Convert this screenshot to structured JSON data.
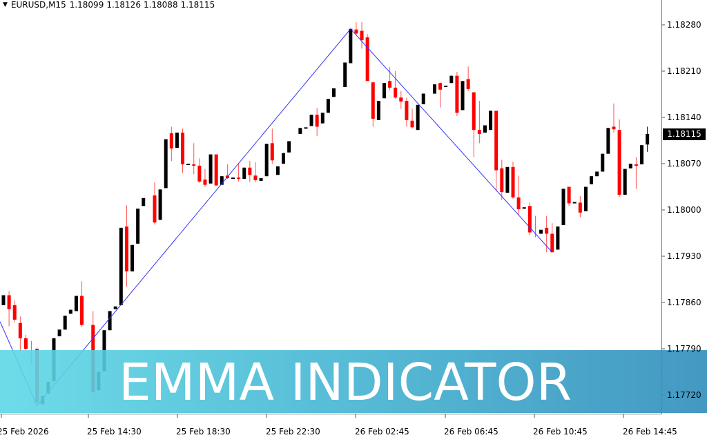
{
  "header": {
    "symbol": "EURUSD,M15",
    "open": "1.18099",
    "high": "1.18126",
    "low": "1.18088",
    "close": "1.18115"
  },
  "price_axis": [
    "1.18280",
    "1.18210",
    "1.18140",
    "1.18070",
    "1.18000",
    "1.17930",
    "1.17860",
    "1.17790",
    "1.17720"
  ],
  "current_price": "1.18115",
  "time_axis": [
    "25 Feb 2026",
    "25 Feb 14:30",
    "25 Feb 18:30",
    "25 Feb 22:30",
    "26 Feb 02:45",
    "26 Feb 06:45",
    "26 Feb 10:45",
    "26 Feb 14:45"
  ],
  "banner": {
    "title": "EMMA INDICATOR"
  },
  "colors": {
    "bull": "#000000",
    "bear": "#ff0000",
    "signal": "#00ee00",
    "zigzag": "#3333ff",
    "banner_left": "#5ed8e6",
    "banner_right": "#2f8dbb"
  },
  "chart_data": {
    "type": "candlestick",
    "symbol": "EURUSD",
    "timeframe": "M15",
    "ylim": [
      1.1768,
      1.1832
    ],
    "candles_ohlc": [
      [
        1.17856,
        1.17871,
        1.17856,
        1.17871
      ],
      [
        1.17871,
        1.17877,
        1.17824,
        1.1785
      ],
      [
        1.17856,
        1.17863,
        1.1783,
        1.17834
      ],
      [
        1.17829,
        1.17839,
        1.17785,
        1.17806
      ],
      [
        1.17806,
        1.17811,
        1.17788,
        1.1779
      ],
      [
        1.17788,
        1.17802,
        1.17767,
        1.17802
      ],
      [
        1.1779,
        1.17792,
        1.17704,
        1.17709
      ],
      [
        1.17706,
        1.17719,
        1.17706,
        1.17719
      ],
      [
        1.17722,
        1.1774,
        1.17722,
        1.1774
      ],
      [
        1.17741,
        1.17806,
        1.17741,
        1.17806
      ],
      [
        1.17809,
        1.17819,
        1.17809,
        1.17819
      ],
      [
        1.17819,
        1.1784,
        1.17819,
        1.1784
      ],
      [
        1.17843,
        1.17849,
        1.17843,
        1.17849
      ],
      [
        1.17847,
        1.1787,
        1.17847,
        1.1787
      ],
      [
        1.1787,
        1.17892,
        1.17823,
        1.17826
      ],
      null,
      [
        1.17826,
        1.17847,
        1.17722,
        1.17725
      ],
      [
        1.17727,
        1.17755,
        1.17727,
        1.17755
      ],
      [
        1.17756,
        1.17818,
        1.17756,
        1.17818
      ],
      [
        1.17818,
        1.17847,
        1.17818,
        1.17847
      ],
      [
        1.1785,
        1.17854,
        1.1785,
        1.17854
      ],
      [
        1.17856,
        1.17973,
        1.17856,
        1.17973
      ],
      [
        1.17975,
        1.18007,
        1.17884,
        1.17907
      ],
      [
        1.17907,
        1.17947,
        1.17907,
        1.17947
      ],
      [
        1.17949,
        1.18002,
        1.17949,
        1.18002
      ],
      [
        1.18006,
        1.18018,
        1.18006,
        1.18018
      ],
      null,
      [
        1.18022,
        1.18042,
        1.17978,
        1.17981
      ],
      [
        1.17985,
        1.18031,
        1.17985,
        1.18031
      ],
      [
        1.18033,
        1.18107,
        1.18033,
        1.18107
      ],
      [
        1.18116,
        1.18126,
        1.18074,
        1.18093
      ],
      [
        1.18094,
        1.18117,
        1.18094,
        1.18117
      ],
      [
        1.18117,
        1.18123,
        1.18056,
        1.18069
      ],
      [
        1.18068,
        1.1807,
        1.18068,
        1.1807
      ],
      [
        1.18069,
        1.18101,
        1.18054,
        1.18067
      ],
      [
        1.18067,
        1.18078,
        1.18041,
        1.18043
      ],
      [
        1.18046,
        1.18062,
        1.18035,
        1.18038
      ],
      [
        1.1804,
        1.18084,
        1.1804,
        1.18084
      ],
      [
        1.18084,
        1.18084,
        1.18037,
        1.18037
      ],
      [
        1.18038,
        1.18051,
        1.18038,
        1.18051
      ],
      [
        1.18052,
        1.18069,
        1.18047,
        1.18048
      ],
      [
        1.18049,
        1.18049,
        1.18049,
        1.18049
      ],
      [
        1.18049,
        1.18071,
        1.18043,
        1.18047
      ],
      [
        1.18047,
        1.18064,
        1.18047,
        1.18064
      ],
      [
        1.18064,
        1.18074,
        1.18042,
        1.18053
      ],
      [
        1.18052,
        1.18072,
        1.18042,
        1.18045
      ],
      [
        1.18044,
        1.18048,
        1.18044,
        1.18048
      ],
      [
        1.18051,
        1.181,
        1.18051,
        1.181
      ],
      [
        1.18101,
        1.18123,
        1.1807,
        1.18075
      ],
      [
        1.18053,
        1.18066,
        1.18053,
        1.18066
      ],
      [
        1.1807,
        1.18086,
        1.1807,
        1.18086
      ],
      [
        1.18087,
        1.18104,
        1.18087,
        1.18104
      ],
      null,
      [
        1.18115,
        1.18124,
        1.18115,
        1.18124
      ],
      [
        1.18125,
        1.18125,
        1.18125,
        1.18125
      ],
      [
        1.18127,
        1.18144,
        1.18127,
        1.18144
      ],
      [
        1.18144,
        1.18154,
        1.18112,
        1.18126
      ],
      [
        1.18131,
        1.18147,
        1.18131,
        1.18147
      ],
      [
        1.18147,
        1.18168,
        1.18147,
        1.18168
      ],
      [
        1.18171,
        1.18184,
        1.18171,
        1.18184
      ],
      null,
      [
        1.18186,
        1.18223,
        1.18186,
        1.18223
      ],
      [
        1.18222,
        1.18274,
        1.18222,
        1.18274
      ],
      [
        1.18273,
        1.18284,
        1.18265,
        1.18267
      ],
      [
        1.18271,
        1.18284,
        1.18244,
        1.18257
      ],
      [
        1.18261,
        1.18266,
        1.18195,
        1.18195
      ],
      [
        1.18193,
        1.18194,
        1.18126,
        1.18138
      ],
      [
        1.18136,
        1.18165,
        1.18136,
        1.18165
      ],
      [
        1.18169,
        1.18192,
        1.18169,
        1.18192
      ],
      [
        1.18195,
        1.18216,
        1.18181,
        1.18185
      ],
      [
        1.18185,
        1.1821,
        1.18168,
        1.1817
      ],
      [
        1.1817,
        1.1818,
        1.18153,
        1.18164
      ],
      [
        1.18165,
        1.1817,
        1.18126,
        1.18136
      ],
      [
        1.18135,
        1.18153,
        1.18123,
        1.18125
      ],
      [
        1.18121,
        1.18159,
        1.18121,
        1.18159
      ],
      [
        1.1816,
        1.18176,
        1.1816,
        1.18176
      ],
      null,
      [
        1.18176,
        1.1819,
        1.18176,
        1.1819
      ],
      [
        1.18192,
        1.18193,
        1.18155,
        1.18182
      ],
      [
        1.18188,
        1.18188,
        1.18188,
        1.18188
      ],
      [
        1.18192,
        1.18203,
        1.18192,
        1.18203
      ],
      [
        1.18203,
        1.18209,
        1.18142,
        1.18147
      ],
      [
        1.18151,
        1.18195,
        1.18151,
        1.18195
      ],
      [
        1.18198,
        1.18217,
        1.1818,
        1.18183
      ],
      [
        1.18178,
        1.18178,
        1.1808,
        1.18121
      ],
      [
        1.18121,
        1.18165,
        1.18101,
        1.18115
      ],
      [
        1.18117,
        1.18128,
        1.18117,
        1.18128
      ],
      [
        1.18121,
        1.1815,
        1.18121,
        1.1815
      ],
      [
        1.1815,
        1.1815,
        1.18028,
        1.1806
      ],
      [
        1.18063,
        1.18076,
        1.18015,
        1.18027
      ],
      [
        1.18026,
        1.18065,
        1.18026,
        1.18065
      ],
      [
        1.18065,
        1.18073,
        1.18017,
        1.18019
      ],
      [
        1.18019,
        1.18052,
        1.17992,
        1.18001
      ],
      [
        1.18004,
        1.18004,
        1.18004,
        1.18004
      ],
      [
        1.18006,
        1.18011,
        1.17962,
        1.17966
      ],
      [
        1.17959,
        1.17991,
        1.17959,
        1.17991
      ],
      [
        1.17964,
        1.1797,
        1.17964,
        1.1797
      ],
      [
        1.17973,
        1.17991,
        1.17936,
        1.17964
      ],
      [
        1.17964,
        1.1798,
        1.17936,
        1.17936
      ],
      [
        1.1794,
        1.17975,
        1.1794,
        1.17975
      ],
      [
        1.17977,
        1.18032,
        1.17977,
        1.18032
      ],
      [
        1.18035,
        1.18035,
        1.18006,
        1.1801
      ],
      [
        1.18012,
        1.18012,
        1.18012,
        1.18012
      ],
      [
        1.18011,
        1.18021,
        1.17989,
        1.17996
      ],
      [
        1.17998,
        1.18035,
        1.17998,
        1.18035
      ],
      [
        1.18039,
        1.18051,
        1.18039,
        1.18051
      ],
      [
        1.18051,
        1.18058,
        1.18051,
        1.18058
      ],
      [
        1.18058,
        1.18085,
        1.18058,
        1.18085
      ],
      [
        1.18085,
        1.18124,
        1.18085,
        1.18124
      ],
      [
        1.18126,
        1.18161,
        1.18117,
        1.18122
      ],
      [
        1.18121,
        1.18137,
        1.1802,
        1.18023
      ],
      [
        1.18023,
        1.18062,
        1.18023,
        1.18062
      ],
      [
        1.18063,
        1.1807,
        1.18063,
        1.1807
      ],
      [
        1.18069,
        1.1808,
        1.18032,
        1.18067
      ],
      [
        1.18069,
        1.18098,
        1.18069,
        1.18098
      ],
      [
        1.18099,
        1.18126,
        1.18088,
        1.18115
      ]
    ],
    "signal_bars": [
      5,
      95
    ],
    "zigzag": [
      {
        "bar": -0.6,
        "price": 1.17831
      },
      {
        "bar": 6,
        "price": 1.17704
      },
      {
        "bar": 62,
        "price": 1.18274
      },
      {
        "bar": 98,
        "price": 1.17936
      }
    ]
  }
}
